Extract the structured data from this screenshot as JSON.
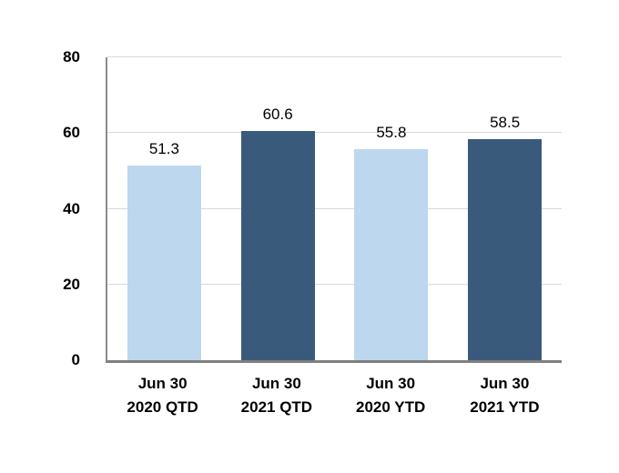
{
  "chart_data": {
    "type": "bar",
    "categories": [
      "Jun 30\n2020 QTD",
      "Jun 30\n2021 QTD",
      "Jun 30\n2020 YTD",
      "Jun 30\n2021 YTD"
    ],
    "values": [
      51.3,
      60.6,
      55.8,
      58.5
    ],
    "value_labels": [
      "51.3",
      "60.6",
      "55.8",
      "58.5"
    ],
    "bar_colors": [
      "#BDD7EE",
      "#3A5A7C",
      "#BDD7EE",
      "#3A5A7C"
    ],
    "yticks": [
      0,
      20,
      40,
      60,
      80
    ],
    "ytick_labels": [
      "0",
      "20",
      "40",
      "60",
      "80"
    ],
    "ylim": [
      0,
      80
    ],
    "grid": "horizontal",
    "legend": "none",
    "colors": {
      "light_series": "#BDD7EE",
      "dark_series": "#3A5A7C",
      "gridline": "#D9D9D9",
      "axis_line": "#808080",
      "text": "#000000",
      "background": "#FFFFFF"
    }
  }
}
